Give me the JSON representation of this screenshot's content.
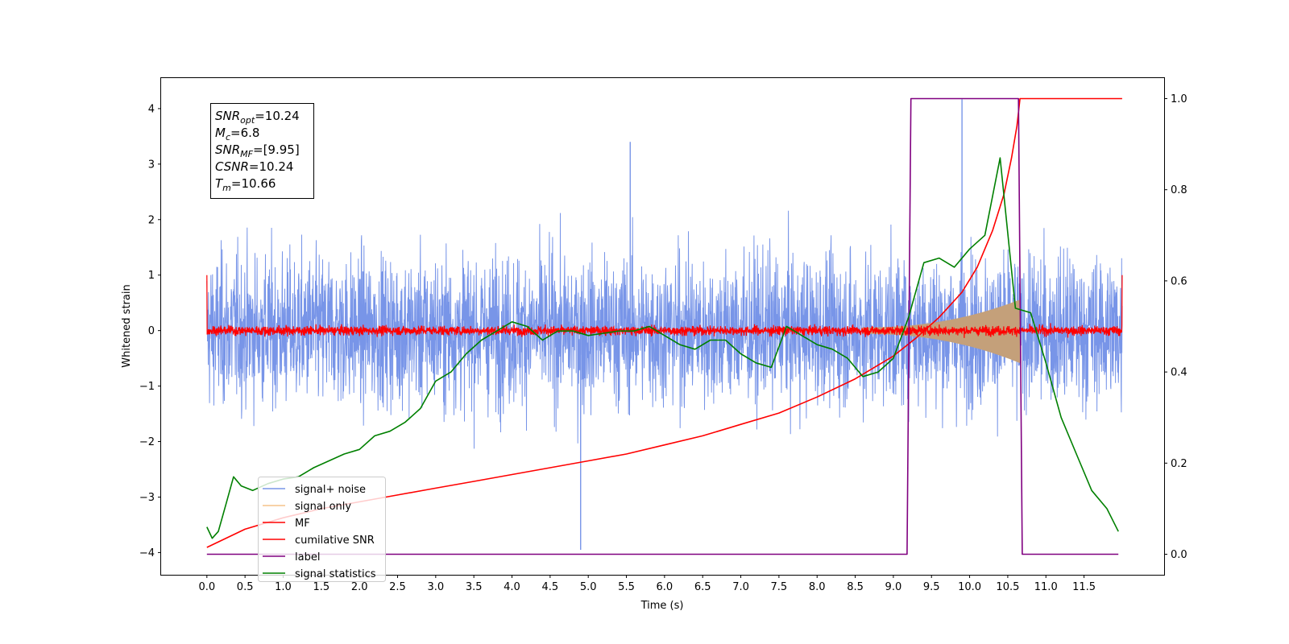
{
  "chart_data": {
    "type": "line",
    "xlabel": "Time (s)",
    "ylabel": "Whitened strain",
    "xlim": [
      -0.6,
      12.55
    ],
    "ylim": [
      -4.4,
      4.55
    ],
    "y2lim": [
      -0.045,
      1.045
    ],
    "xticks": [
      0.0,
      0.5,
      1.0,
      1.5,
      2.0,
      2.5,
      3.0,
      3.5,
      4.0,
      4.5,
      5.0,
      5.5,
      6.0,
      6.5,
      7.0,
      7.5,
      8.0,
      8.5,
      9.0,
      9.5,
      10.0,
      10.5,
      11.0,
      11.5
    ],
    "xtick_labels": [
      "0.0",
      "0.5",
      "1.0",
      "1.5",
      "2.0",
      "2.5",
      "3.0",
      "3.5",
      "4.0",
      "4.5",
      "5.0",
      "5.5",
      "6.0",
      "6.5",
      "7.0",
      "7.5",
      "8.0",
      "8.5",
      "9.0",
      "9.5",
      "10.0",
      "10.5",
      "11.0",
      "11.5"
    ],
    "yticks": [
      -4,
      -3,
      -2,
      -1,
      0,
      1,
      2,
      3,
      4
    ],
    "ytick_labels": [
      "−4",
      "−3",
      "−2",
      "−1",
      "0",
      "1",
      "2",
      "3",
      "4"
    ],
    "y2ticks": [
      0.0,
      0.2,
      0.4,
      0.6,
      0.8,
      1.0
    ],
    "y2tick_labels": [
      "0.0",
      "0.2",
      "0.4",
      "0.6",
      "0.8",
      "1.0"
    ],
    "grid": false,
    "legend_position": "lower-left",
    "annotation": {
      "lines": [
        {
          "base": "SNR",
          "sub": "opt",
          "rest": "=10.24"
        },
        {
          "base": "M",
          "sub": "c",
          "rest": "=6.8"
        },
        {
          "base": "SNR",
          "sub": "MF",
          "rest": "=[9.95]"
        },
        {
          "base": "CSNR",
          "sub": "",
          "rest": "=10.24"
        },
        {
          "base": "T",
          "sub": "m",
          "rest": "=10.66"
        }
      ]
    },
    "series": [
      {
        "name": "signal+ noise",
        "axis": "left",
        "color": "#7895e8",
        "kind": "noise",
        "x_range": [
          0.0,
          12.0
        ],
        "envelope_hi": 3.0,
        "envelope_lo": -3.0,
        "spikes": [
          {
            "x": 4.9,
            "y": -3.95
          },
          {
            "x": 9.9,
            "y": 4.17
          },
          {
            "x": 5.55,
            "y": 3.4
          }
        ]
      },
      {
        "name": "signal only",
        "axis": "left",
        "color": "#f5c48a",
        "fill": "#c4a07a",
        "kind": "chirp",
        "x_range": [
          8.6,
          10.66
        ],
        "amplitude_start": 0.05,
        "amplitude_end": 0.55
      },
      {
        "name": "MF",
        "axis": "left",
        "color": "#ff0000",
        "kind": "noise-small",
        "x_range": [
          0.0,
          12.0
        ],
        "envelope_hi": 0.15,
        "envelope_lo": -0.15,
        "edge_value": 1.0
      },
      {
        "name": "cumilative SNR",
        "axis": "right",
        "color": "#ff0000",
        "kind": "line",
        "x": [
          0.0,
          0.5,
          1.0,
          1.5,
          2.0,
          2.5,
          3.0,
          3.5,
          4.0,
          4.5,
          5.0,
          5.5,
          6.0,
          6.5,
          7.0,
          7.5,
          8.0,
          8.5,
          9.0,
          9.3,
          9.6,
          9.9,
          10.1,
          10.3,
          10.45,
          10.55,
          10.62,
          10.66,
          12.0
        ],
        "y": [
          0.015,
          0.055,
          0.08,
          0.1,
          0.115,
          0.13,
          0.145,
          0.16,
          0.175,
          0.19,
          0.205,
          0.22,
          0.24,
          0.26,
          0.285,
          0.31,
          0.345,
          0.385,
          0.435,
          0.475,
          0.52,
          0.575,
          0.63,
          0.71,
          0.79,
          0.87,
          0.94,
          1.0,
          1.0
        ]
      },
      {
        "name": "label",
        "axis": "right",
        "color": "#800080",
        "kind": "step",
        "x": [
          0.0,
          9.18,
          9.23,
          10.64,
          10.69,
          11.95
        ],
        "y": [
          0.0,
          0.0,
          1.0,
          1.0,
          0.0,
          0.0
        ]
      },
      {
        "name": "signal statistics",
        "axis": "right",
        "color": "#008000",
        "kind": "line",
        "x": [
          0.0,
          0.07,
          0.15,
          0.25,
          0.35,
          0.45,
          0.6,
          0.8,
          1.0,
          1.2,
          1.4,
          1.6,
          1.8,
          2.0,
          2.2,
          2.4,
          2.6,
          2.8,
          3.0,
          3.2,
          3.4,
          3.6,
          3.8,
          4.0,
          4.2,
          4.4,
          4.6,
          4.8,
          5.0,
          5.2,
          5.4,
          5.6,
          5.8,
          6.0,
          6.2,
          6.4,
          6.6,
          6.8,
          7.0,
          7.2,
          7.4,
          7.6,
          7.8,
          8.0,
          8.2,
          8.4,
          8.6,
          8.8,
          9.0,
          9.2,
          9.4,
          9.6,
          9.8,
          10.0,
          10.2,
          10.4,
          10.6,
          10.8,
          11.0,
          11.2,
          11.4,
          11.6,
          11.8,
          11.95
        ],
        "y": [
          0.06,
          0.035,
          0.05,
          0.11,
          0.17,
          0.15,
          0.14,
          0.155,
          0.165,
          0.17,
          0.19,
          0.205,
          0.22,
          0.23,
          0.26,
          0.27,
          0.29,
          0.32,
          0.38,
          0.4,
          0.44,
          0.47,
          0.49,
          0.51,
          0.5,
          0.47,
          0.49,
          0.49,
          0.48,
          0.485,
          0.49,
          0.49,
          0.5,
          0.48,
          0.46,
          0.45,
          0.47,
          0.47,
          0.44,
          0.42,
          0.41,
          0.5,
          0.48,
          0.46,
          0.45,
          0.43,
          0.39,
          0.4,
          0.43,
          0.52,
          0.64,
          0.65,
          0.63,
          0.67,
          0.7,
          0.87,
          0.54,
          0.53,
          0.42,
          0.3,
          0.22,
          0.14,
          0.1,
          0.05
        ]
      }
    ]
  }
}
